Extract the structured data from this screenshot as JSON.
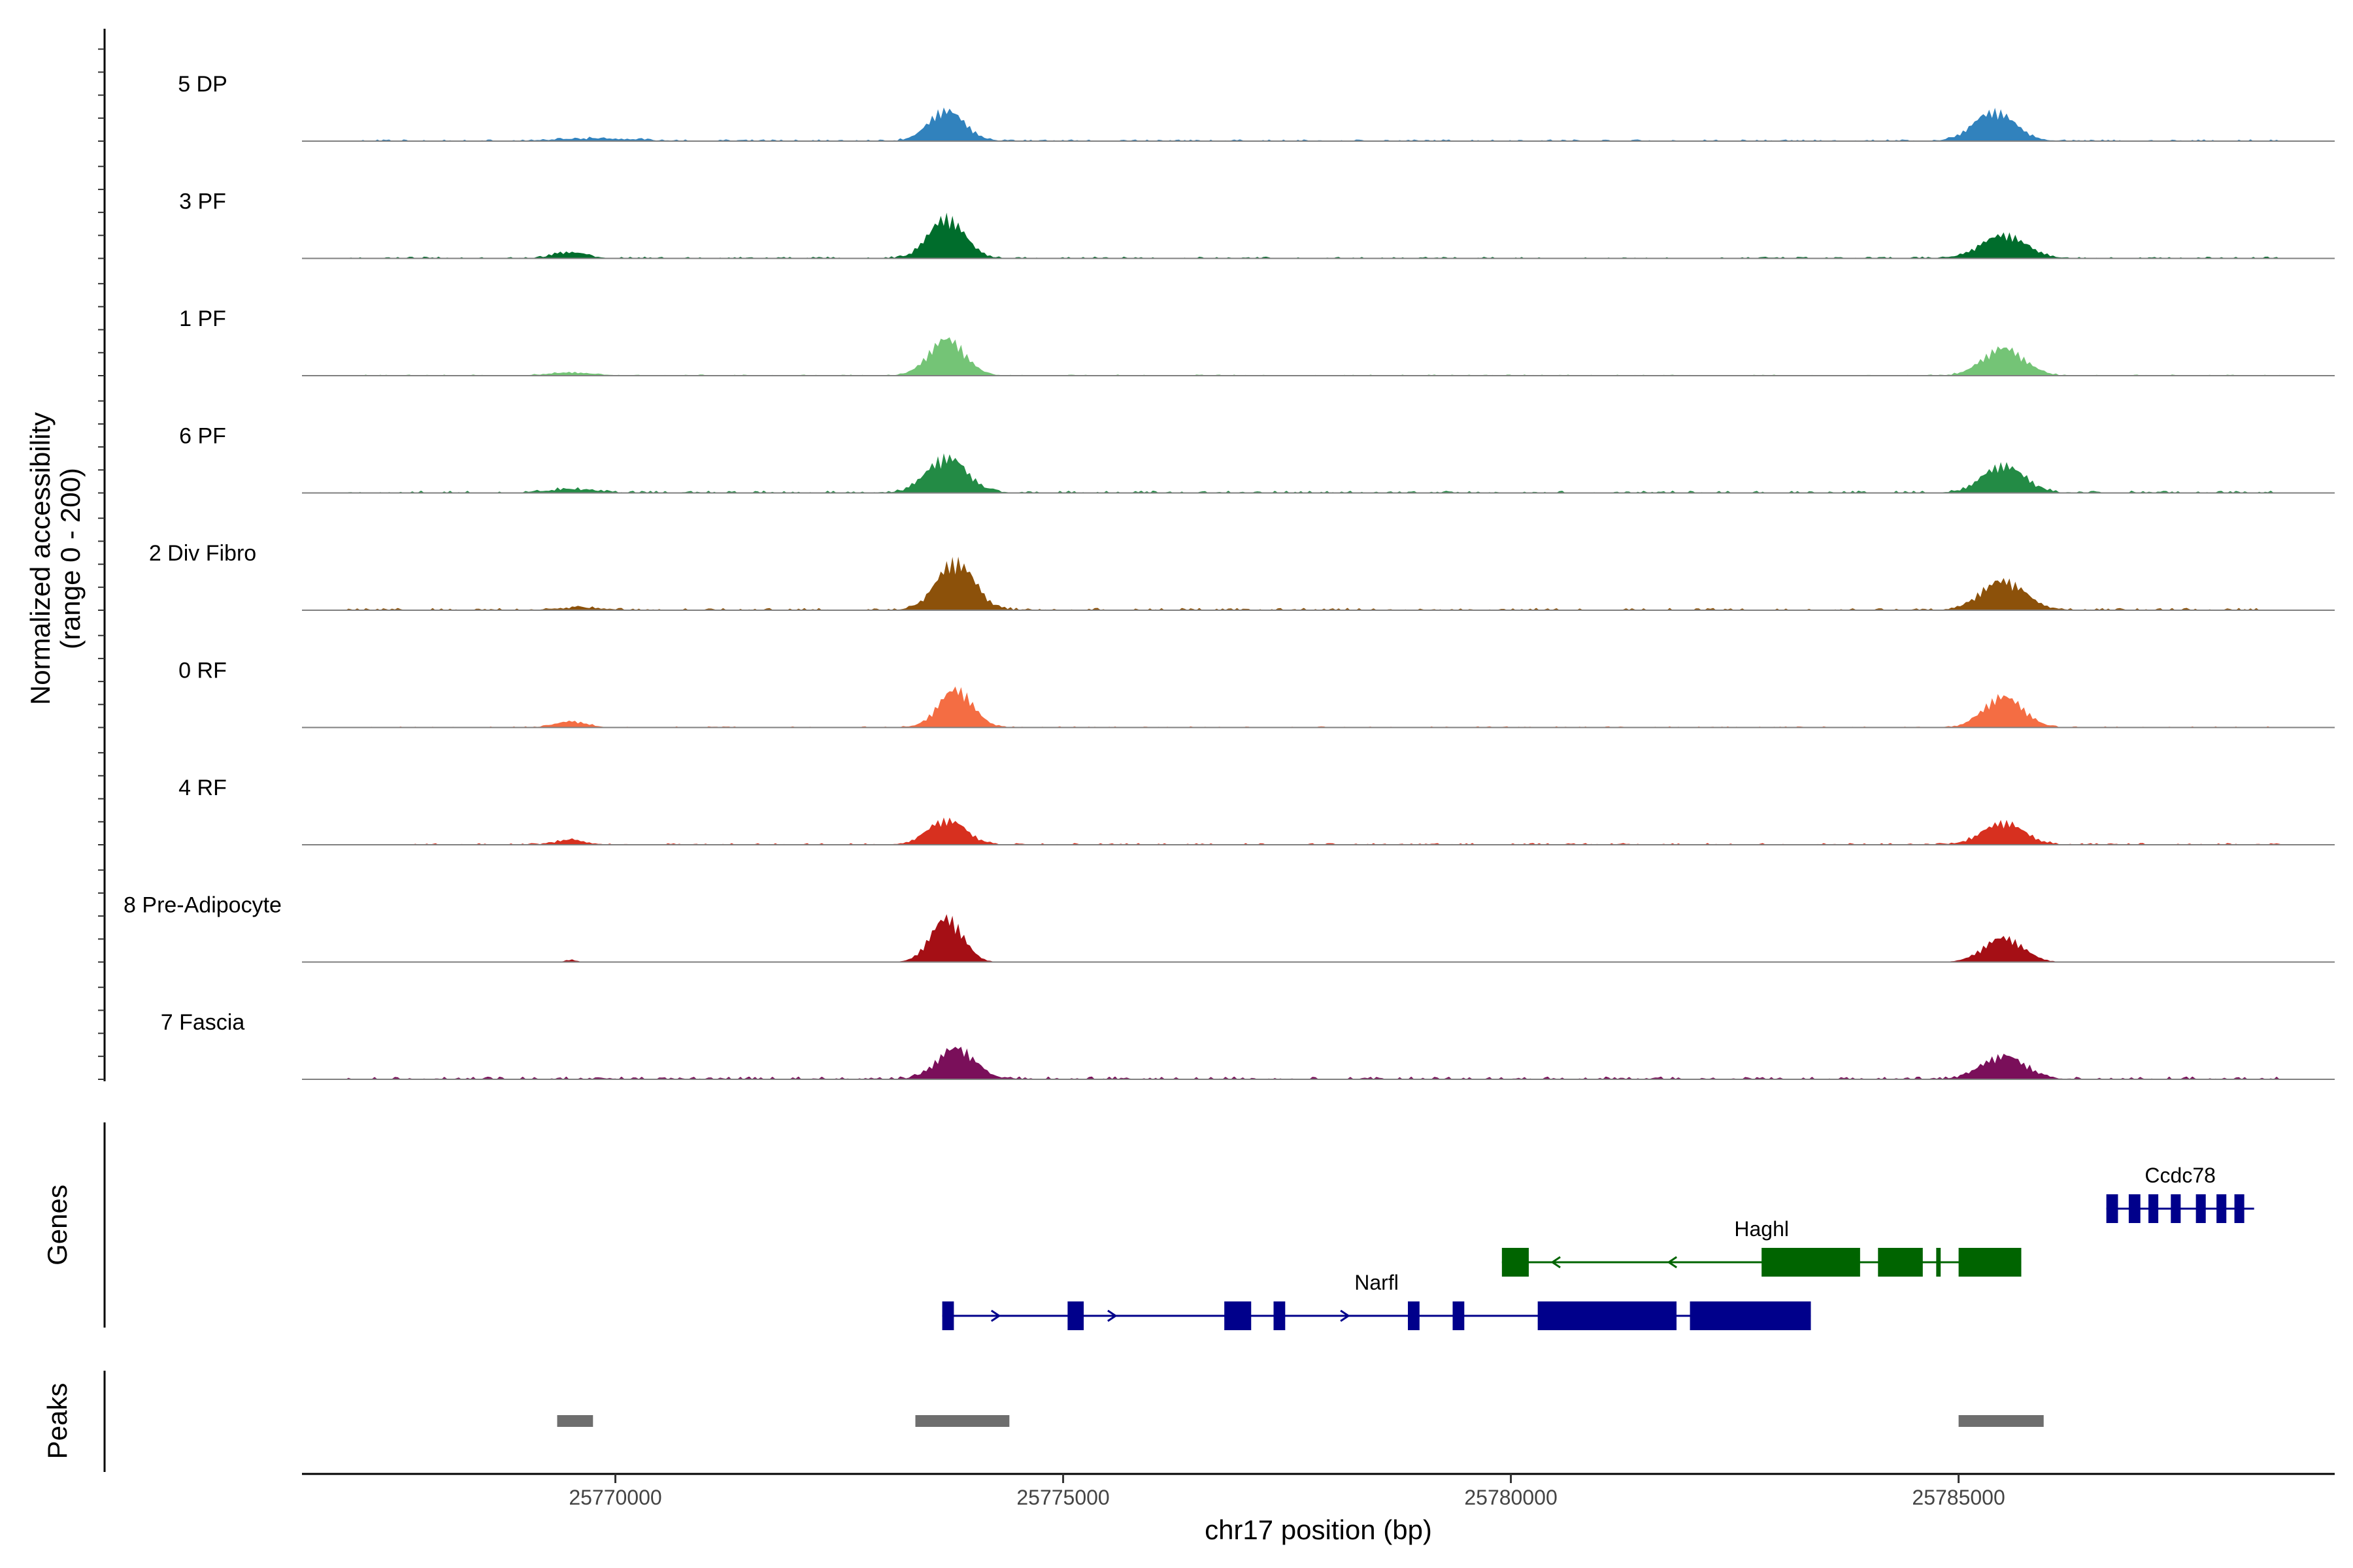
{
  "chart_data": {
    "type": "area",
    "title": "",
    "xlabel": "chr17 position (bp)",
    "ylabel": "Normalized accessibility",
    "ylabel_sub": "(range 0 - 200)",
    "y_range": [
      0,
      200
    ],
    "x_range": [
      25766500,
      25789200
    ],
    "x_ticks": [
      25770000,
      25775000,
      25780000,
      25785000
    ],
    "x_tick_labels": [
      "25770000",
      "25775000",
      "25780000",
      "25785000"
    ],
    "panel_titles": {
      "genes": "Genes",
      "peaks": "Peaks"
    },
    "series": [
      {
        "name": "5 DP",
        "color": "#3182bd",
        "peaks": [
          [
            25769800,
            4,
            450
          ],
          [
            25773700,
            50,
            200
          ],
          [
            25785400,
            48,
            230
          ]
        ],
        "noise": 3
      },
      {
        "name": "3 PF",
        "color": "#006d2c",
        "peaks": [
          [
            25769500,
            10,
            180
          ],
          [
            25773700,
            65,
            200
          ],
          [
            25785500,
            38,
            250
          ]
        ],
        "noise": 3
      },
      {
        "name": "1 PF",
        "color": "#74c476",
        "peaks": [
          [
            25769500,
            5,
            250
          ],
          [
            25773700,
            60,
            200
          ],
          [
            25785500,
            45,
            230
          ]
        ],
        "noise": 2
      },
      {
        "name": "6 PF",
        "color": "#238b45",
        "peaks": [
          [
            25769500,
            6,
            250
          ],
          [
            25773700,
            58,
            220
          ],
          [
            25785500,
            45,
            230
          ]
        ],
        "noise": 4
      },
      {
        "name": "2 Div Fibro",
        "color": "#8c510a",
        "peaks": [
          [
            25769600,
            4,
            250
          ],
          [
            25773800,
            78,
            210
          ],
          [
            25785500,
            48,
            240
          ]
        ],
        "noise": 4
      },
      {
        "name": "0 RF",
        "color": "#f46d43",
        "peaks": [
          [
            25769500,
            10,
            170
          ],
          [
            25773800,
            62,
            190
          ],
          [
            25785500,
            50,
            220
          ]
        ],
        "noise": 2
      },
      {
        "name": "4 RF",
        "color": "#d7301f",
        "peaks": [
          [
            25769500,
            8,
            160
          ],
          [
            25773700,
            40,
            210
          ],
          [
            25785500,
            36,
            230
          ]
        ],
        "noise": 3
      },
      {
        "name": "8 Pre-Adipocyte",
        "color": "#a50f15",
        "peaks": [
          [
            25769500,
            4,
            60
          ],
          [
            25773700,
            72,
            180
          ],
          [
            25785500,
            40,
            220
          ]
        ],
        "noise": 0
      },
      {
        "name": "7 Fascia",
        "color": "#7a0f5a",
        "peaks": [
          [
            25773800,
            50,
            210
          ],
          [
            25785500,
            38,
            240
          ]
        ],
        "noise": 5
      }
    ],
    "genes": [
      {
        "name": "Ccdc78",
        "strand": "+",
        "color": "#00008b",
        "start": 25786650,
        "end": 25788300,
        "row": 0,
        "exons": [
          [
            25786650,
            25786780
          ],
          [
            25786900,
            25787030
          ],
          [
            25787120,
            25787230
          ],
          [
            25787370,
            25787480
          ],
          [
            25787650,
            25787760
          ],
          [
            25787880,
            25787990
          ],
          [
            25788080,
            25788190
          ]
        ]
      },
      {
        "name": "Haghl",
        "strand": "-",
        "color": "#006400",
        "start": 25779900,
        "end": 25785700,
        "row": 1,
        "exons": [
          [
            25779900,
            25780200
          ],
          [
            25782800,
            25783900
          ],
          [
            25784100,
            25784600
          ],
          [
            25784750,
            25784800
          ],
          [
            25785000,
            25785700
          ]
        ]
      },
      {
        "name": "Narfl",
        "strand": "+",
        "color": "#00008b",
        "start": 25773650,
        "end": 25783350,
        "row": 2,
        "exons": [
          [
            25773650,
            25773780
          ],
          [
            25775050,
            25775230
          ],
          [
            25776800,
            25777100
          ],
          [
            25777350,
            25777480
          ],
          [
            25778850,
            25778980
          ],
          [
            25779350,
            25779480
          ],
          [
            25780300,
            25781850
          ],
          [
            25782000,
            25783350
          ]
        ]
      }
    ],
    "peaks": [
      [
        25769350,
        25769750
      ],
      [
        25773350,
        25774400
      ],
      [
        25785000,
        25785950
      ]
    ]
  }
}
